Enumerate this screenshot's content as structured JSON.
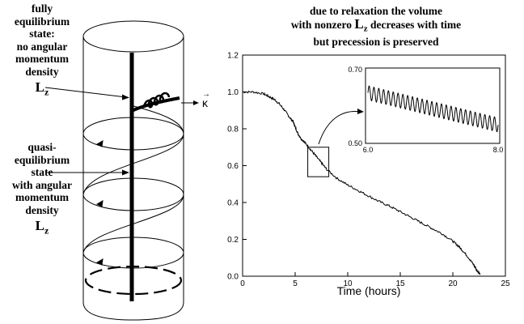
{
  "left_figure": {
    "top_label": [
      "fully",
      "equilibrium",
      "state:",
      "no angular",
      "momentum",
      "density"
    ],
    "top_symbol": "L",
    "top_symbol_sub": "z",
    "mid_label": [
      "quasi-",
      "equilibrium",
      "state",
      "with angular",
      "momentum",
      "density"
    ],
    "mid_symbol": "L",
    "mid_symbol_sub": "z",
    "kappa_label": "κ"
  },
  "chart_title": {
    "line1": "due to relaxation the volume",
    "line2_pre": "with nonzero ",
    "line2_sym": "L",
    "line2_sub": "z",
    "line2_post": " decreases with time",
    "line3": "but precession is preserved"
  },
  "chart_data": [
    {
      "type": "line",
      "xlabel": "Time  (hours)",
      "ylabel": "",
      "xlim": [
        0,
        25
      ],
      "ylim": [
        0.0,
        1.2
      ],
      "x_ticks": [
        "0",
        "5",
        "10",
        "15",
        "20",
        "25"
      ],
      "y_ticks": [
        "0.0",
        "0.2",
        "0.4",
        "0.6",
        "0.8",
        "1.0",
        "1.2"
      ],
      "x_tick_values": [
        0,
        5,
        10,
        15,
        20,
        25
      ],
      "y_tick_values": [
        0.0,
        0.2,
        0.4,
        0.6,
        0.8,
        1.0,
        1.2
      ],
      "series": [
        {
          "x": [
            0,
            1,
            2,
            2.5,
            3,
            3.5,
            4,
            4.5,
            4.8,
            5,
            5.3,
            5.6,
            6,
            6.5,
            7,
            7.5,
            8,
            9,
            10,
            11,
            12,
            13,
            14,
            15,
            16,
            17,
            18,
            19,
            20,
            20.5,
            21,
            21.5,
            22,
            22.3,
            22.6
          ],
          "y": [
            1.0,
            1.0,
            0.99,
            0.975,
            0.96,
            0.935,
            0.9,
            0.86,
            0.84,
            0.81,
            0.77,
            0.745,
            0.72,
            0.685,
            0.65,
            0.615,
            0.58,
            0.53,
            0.495,
            0.465,
            0.435,
            0.405,
            0.38,
            0.35,
            0.32,
            0.29,
            0.26,
            0.23,
            0.19,
            0.165,
            0.135,
            0.1,
            0.06,
            0.03,
            0.015
          ]
        }
      ]
    },
    {
      "type": "line",
      "xlim": [
        6.0,
        8.0
      ],
      "ylim": [
        0.5,
        0.7
      ],
      "x_ticks": [
        "6.0",
        "8.0"
      ],
      "y_ticks": [
        "0.50",
        "0.70"
      ],
      "series": [
        {
          "x_start": 6.0,
          "x_end": 8.0,
          "y_start": 0.635,
          "y_end": 0.545,
          "oscillation_amplitude": 0.02,
          "oscillations": 27
        }
      ]
    }
  ]
}
